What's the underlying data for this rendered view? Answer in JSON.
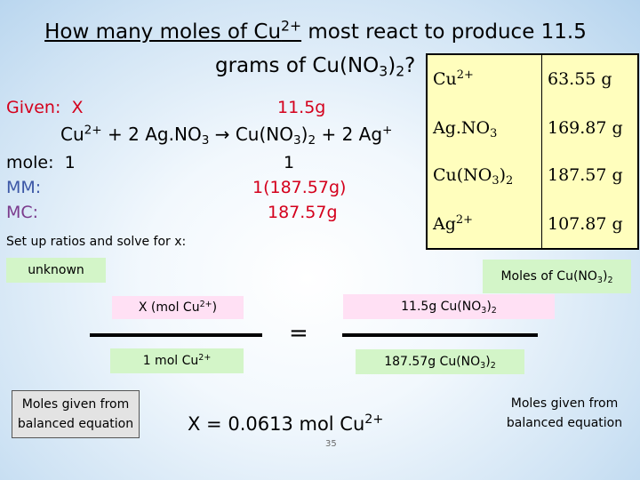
{
  "title": {
    "line1_underlined": "How many moles of Cu",
    "line1_sup": "2+",
    "line1_rest": " most react to  produce 11.5",
    "line2_a": "grams of Cu(NO",
    "line2_sub": "3",
    "line2_b": ")",
    "line2_sub2": "2",
    "line2_c": "?"
  },
  "given": {
    "label": "Given:",
    "x": "X",
    "mass": "11.5g"
  },
  "equation": {
    "p1": "Cu",
    "p1_sup": "2+",
    "p2": " + 2 Ag.NO",
    "p2_sub": "3",
    "p3": " → Cu(NO",
    "p3_sub": "3",
    "p4": ")",
    "p4_sub": "2",
    "p5": " + 2 Ag",
    "p5_sup": "+"
  },
  "rows": {
    "mole_label": "mole:",
    "mole_left": "1",
    "mole_right": "1",
    "mm_label": "MM:",
    "mm_right": "1(187.57g)",
    "mc_label": "MC:",
    "mc_right": "187.57g"
  },
  "molar_mass_table": [
    {
      "formula": "Cu",
      "sup": "2+",
      "sub": "",
      "tail": "",
      "mass": "63.55 g"
    },
    {
      "formula": "Ag.NO",
      "sup": "",
      "sub": "3",
      "tail": "",
      "mass": "169.87 g"
    },
    {
      "formula": "Cu(NO",
      "sup": "",
      "sub": "3",
      "tail": ")2",
      "mass": "187.57 g"
    },
    {
      "formula": "Ag",
      "sup": "2+",
      "sub": "",
      "tail": "",
      "mass": "107.87 g"
    }
  ],
  "instruction": "Set up ratios and solve for x:",
  "unknown_label": "unknown",
  "moles_label": {
    "text": "Moles of Cu(NO",
    "sub1": "3",
    "mid": ")",
    "sub2": "2"
  },
  "ratio_left": {
    "num_text": "X  (mol Cu",
    "num_sup": "2+",
    "num_tail": ")",
    "den_text": "1 mol Cu",
    "den_sup": "2+"
  },
  "equals": "=",
  "ratio_right": {
    "num_text": "11.5g Cu(NO",
    "num_sub1": "3",
    "num_mid": ")",
    "num_sub2": "2",
    "den_text": "187.57g Cu(NO",
    "den_sub1": "3",
    "den_mid": ")",
    "den_sub2": "2"
  },
  "moles_given_left": "Moles given from balanced equation",
  "moles_given_right": "Moles given from balanced equation",
  "answer": {
    "text": "X  = 0.0613 mol Cu",
    "sup": "2+"
  },
  "slide_number": "35",
  "colors": {
    "red": "#d4001c",
    "blue": "#3c57a6",
    "purple": "#7a3a8c",
    "table_bg": "#fffebd",
    "green_box": "#d3f5c8",
    "pink_box": "#ffe0f4"
  }
}
